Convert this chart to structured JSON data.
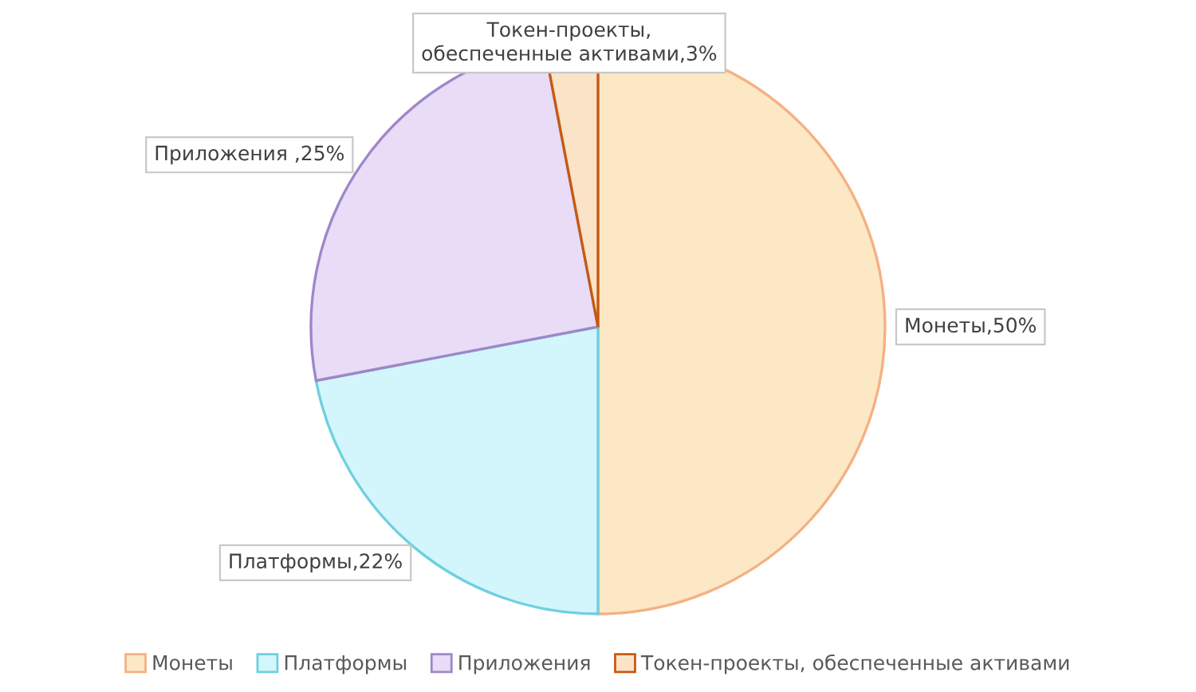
{
  "chart_data": {
    "type": "pie",
    "categories": [
      "Монеты",
      "Платформы",
      "Приложения",
      "Токен-проекты, обеспеченные активами"
    ],
    "values": [
      50,
      22,
      25,
      3
    ],
    "colors": [
      "#fde8c6",
      "#d2f6fb",
      "#e8dcf7",
      "#fbe3c8"
    ],
    "value_labels": [
      "Монеты,50%",
      "Платформы,22%",
      "Приложения ,25%",
      "Токен-проекты,\nобеспеченные активами,3%"
    ],
    "legend": "bottom"
  }
}
